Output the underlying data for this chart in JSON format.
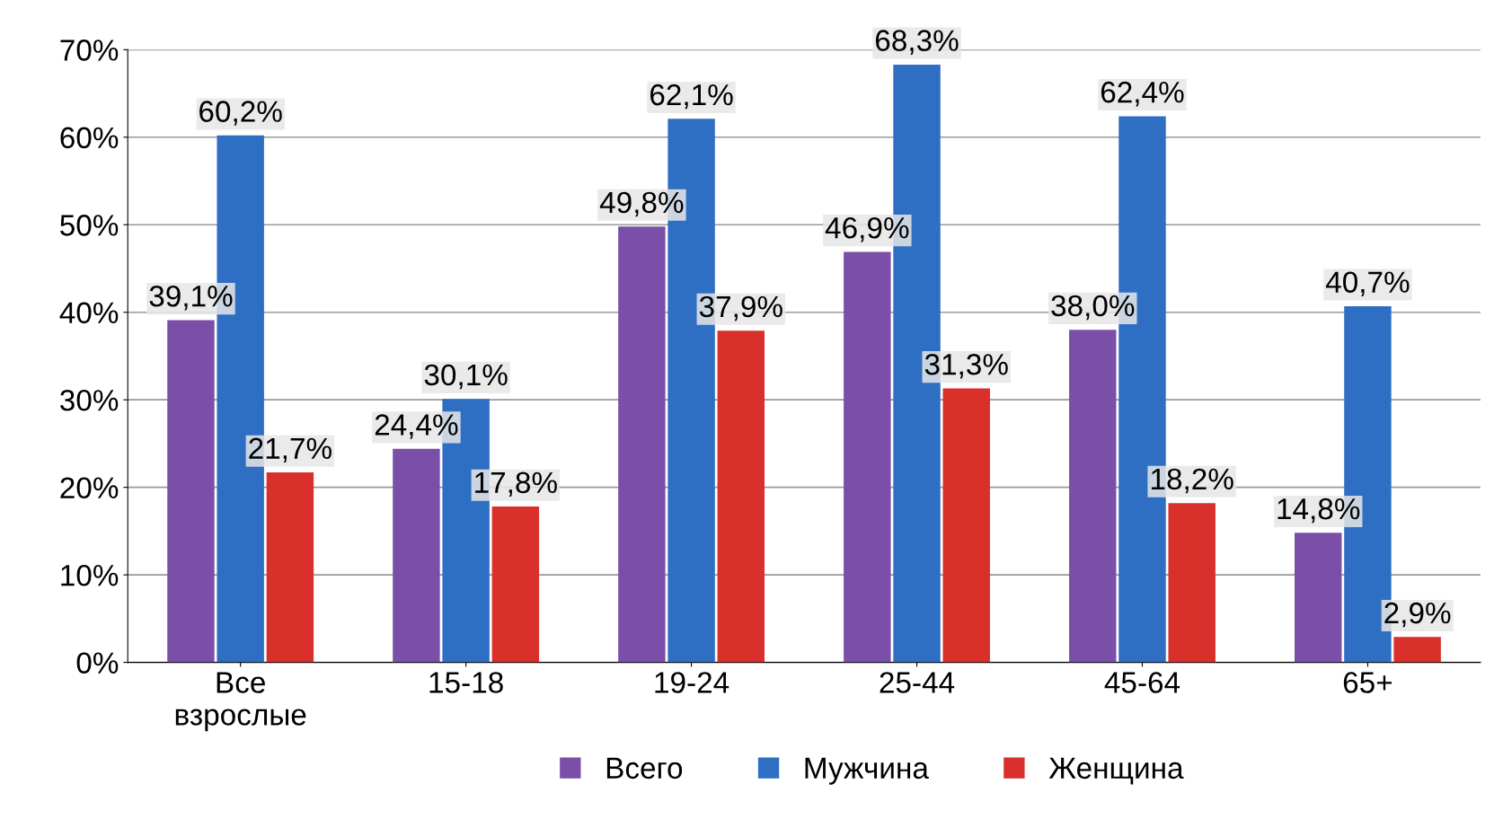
{
  "chart_data": {
    "type": "bar",
    "categories": [
      "Все\nвзрослые",
      "15-18",
      "19-24",
      "25-44",
      "45-64",
      "65+"
    ],
    "series": [
      {
        "name": "Всего",
        "color": "#7b4fa8",
        "values": [
          39.1,
          24.4,
          49.8,
          46.9,
          38.0,
          14.8
        ],
        "value_labels": [
          "39,1%",
          "24,4%",
          "49,8%",
          "46,9%",
          "38,0%",
          "14,8%"
        ]
      },
      {
        "name": "Мужчина",
        "color": "#2e6fc4",
        "values": [
          60.2,
          30.1,
          62.1,
          68.3,
          62.4,
          40.7
        ],
        "value_labels": [
          "60,2%",
          "30,1%",
          "62,1%",
          "68,3%",
          "62,4%",
          "40,7%"
        ]
      },
      {
        "name": "Женщина",
        "color": "#d9302c",
        "values": [
          21.7,
          17.8,
          37.9,
          31.3,
          18.2,
          2.9
        ],
        "value_labels": [
          "21,7%",
          "17,8%",
          "37,9%",
          "31,3%",
          "18,2%",
          "2,9%"
        ]
      }
    ],
    "ylim": [
      0,
      70
    ],
    "yticks": [
      {
        "value": 0,
        "label": "0%"
      },
      {
        "value": 10,
        "label": "10%"
      },
      {
        "value": 20,
        "label": "20%"
      },
      {
        "value": 30,
        "label": "30%"
      },
      {
        "value": 40,
        "label": "40%"
      },
      {
        "value": 50,
        "label": "50%"
      },
      {
        "value": 60,
        "label": "60%"
      },
      {
        "value": 70,
        "label": "70%"
      }
    ],
    "grid": "y",
    "legend": "bottom"
  }
}
